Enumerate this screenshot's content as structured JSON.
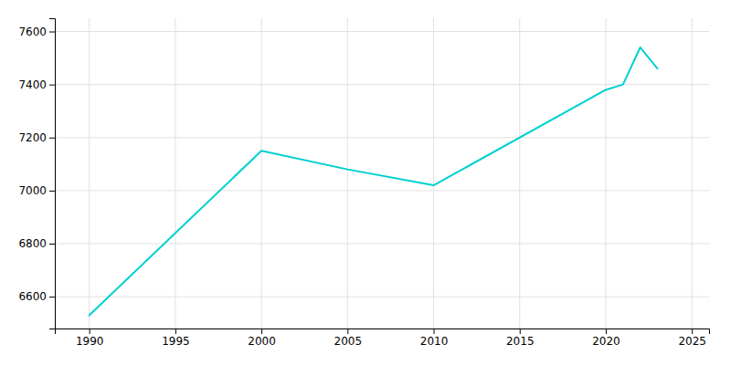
{
  "chart_data": {
    "type": "line",
    "x": [
      1990,
      2000,
      2005,
      2010,
      2020,
      2021,
      2022,
      2023
    ],
    "values": [
      6530,
      7150,
      7080,
      7020,
      7380,
      7400,
      7540,
      7460
    ],
    "color": "#00d0d0",
    "xlim": [
      1988,
      2026
    ],
    "ylim": [
      6480,
      7650
    ],
    "xticks": [
      1990,
      1995,
      2000,
      2005,
      2010,
      2015,
      2020,
      2025
    ],
    "yticks": [
      6600,
      6800,
      7000,
      7200,
      7400,
      7600
    ],
    "grid": true
  }
}
